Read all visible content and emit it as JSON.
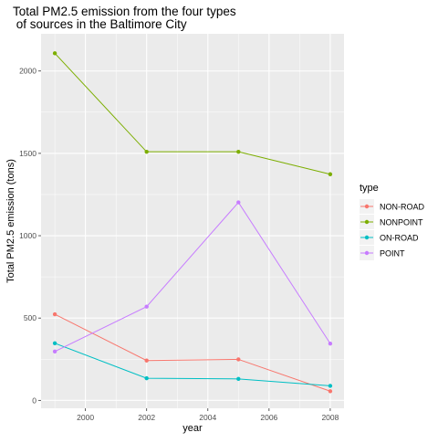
{
  "chart_data": {
    "type": "line",
    "title_lines": [
      "Total PM2.5 emission from the four types",
      " of sources in the Baltimore City"
    ],
    "xlabel": "year",
    "ylabel": "Total PM2.5 emission (tons)",
    "x": [
      1999,
      2002,
      2005,
      2008
    ],
    "xticks": [
      2000,
      2002,
      2004,
      2006,
      2008
    ],
    "xtick_labels": [
      "2000",
      "2002",
      "2004",
      "2006",
      "2008"
    ],
    "yticks": [
      0,
      500,
      1000,
      1500,
      2000
    ],
    "ytick_labels": [
      "0",
      "500",
      "1000",
      "1500",
      "2000"
    ],
    "xlim": [
      1998.55,
      2008.45
    ],
    "ylim": [
      -48,
      2226
    ],
    "grid": true,
    "legend": {
      "title": "type",
      "position": "right"
    },
    "series": [
      {
        "name": "NON-ROAD",
        "color": "#F8766D",
        "values": [
          522.94,
          241.85,
          248.93,
          55.82
        ]
      },
      {
        "name": "NONPOINT",
        "color": "#7CAE00",
        "values": [
          2107.63,
          1509.5,
          1509.5,
          1373.21
        ]
      },
      {
        "name": "ON-ROAD",
        "color": "#00BFC4",
        "values": [
          346.82,
          134.31,
          130.43,
          88.28
        ]
      },
      {
        "name": "POINT",
        "color": "#C77CFF",
        "values": [
          296.8,
          569.26,
          1202.49,
          344.98
        ]
      }
    ]
  }
}
